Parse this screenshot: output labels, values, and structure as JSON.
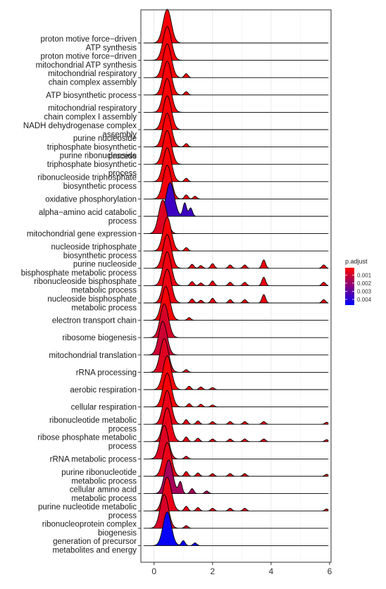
{
  "chart_data": {
    "type": "ridgeline",
    "xlim": [
      -0.45,
      6.05
    ],
    "x_ticks": [
      0,
      2,
      4,
      6
    ],
    "grid": true,
    "legend": {
      "title": "p.adjust",
      "placement": "right",
      "ticks": [
        0.001,
        0.002,
        0.003,
        0.004
      ],
      "tick_labels": [
        "0.001",
        "0.002",
        "0.003",
        "0.004"
      ],
      "colors": {
        "low": "#ff0000",
        "high": "#0000ff"
      },
      "range": [
        0.0001,
        0.0047
      ]
    },
    "rows": [
      {
        "label": [
          "proton motive force−driven",
          "ATP synthesis"
        ],
        "peak_x": 0.45,
        "p_adjust": 0.0002,
        "bumps": []
      },
      {
        "label": [
          "proton motive force−driven",
          "mitochondrial ATP synthesis"
        ],
        "peak_x": 0.45,
        "p_adjust": 0.0002,
        "bumps": []
      },
      {
        "label": [
          "mitochondrial respiratory",
          "chain complex assembly"
        ],
        "peak_x": 0.45,
        "p_adjust": 0.0002,
        "bumps": [
          [
            1.1,
            0.12
          ]
        ]
      },
      {
        "label": [
          "ATP biosynthetic process"
        ],
        "peak_x": 0.45,
        "p_adjust": 0.0002,
        "bumps": [
          [
            1.1,
            0.1
          ]
        ]
      },
      {
        "label": [
          "mitochondrial respiratory",
          "chain complex I assembly"
        ],
        "peak_x": 0.45,
        "p_adjust": 0.0002,
        "bumps": []
      },
      {
        "label": [
          "NADH dehydrogenase complex",
          "assembly"
        ],
        "peak_x": 0.45,
        "p_adjust": 0.0002,
        "bumps": []
      },
      {
        "label": [
          "purine nucleoside",
          "triphosphate biosynthetic",
          "process"
        ],
        "peak_x": 0.45,
        "p_adjust": 0.0002,
        "bumps": [
          [
            1.1,
            0.1
          ]
        ]
      },
      {
        "label": [
          "purine ribonucleoside",
          "triphosphate biosynthetic",
          "process"
        ],
        "peak_x": 0.45,
        "p_adjust": 0.0002,
        "bumps": []
      },
      {
        "label": [
          "ribonucleoside triphosphate",
          "biosynthetic process"
        ],
        "peak_x": 0.45,
        "p_adjust": 0.0002,
        "bumps": [
          [
            1.1,
            0.1
          ]
        ]
      },
      {
        "label": [
          "oxidative phosphorylation"
        ],
        "peak_x": 0.45,
        "p_adjust": 0.0003,
        "bumps": [
          [
            1.1,
            0.12
          ],
          [
            1.4,
            0.08
          ]
        ]
      },
      {
        "label": [
          "alpha−amino acid catabolic",
          "process"
        ],
        "peak_x": 0.55,
        "p_adjust": 0.0036,
        "bumps": [
          [
            1.05,
            0.4
          ],
          [
            1.25,
            0.25
          ]
        ]
      },
      {
        "label": [
          "mitochondrial gene expression"
        ],
        "peak_x": 0.3,
        "p_adjust": 0.0007,
        "bumps": []
      },
      {
        "label": [
          "nucleoside triphosphate",
          "biosynthetic process"
        ],
        "peak_x": 0.45,
        "p_adjust": 0.0002,
        "bumps": [
          [
            1.1,
            0.1
          ]
        ]
      },
      {
        "label": [
          "purine nucleoside",
          "bisphosphate metabolic process"
        ],
        "peak_x": 0.45,
        "p_adjust": 0.0004,
        "bumps": [
          [
            1.3,
            0.12
          ],
          [
            1.6,
            0.08
          ],
          [
            2.0,
            0.14
          ],
          [
            2.6,
            0.1
          ],
          [
            3.1,
            0.1
          ],
          [
            3.75,
            0.25
          ],
          [
            5.8,
            0.1
          ]
        ]
      },
      {
        "label": [
          "ribonucleoside bisphosphate",
          "metabolic process"
        ],
        "peak_x": 0.45,
        "p_adjust": 0.0004,
        "bumps": [
          [
            1.3,
            0.12
          ],
          [
            1.6,
            0.08
          ],
          [
            2.0,
            0.14
          ],
          [
            2.6,
            0.1
          ],
          [
            3.1,
            0.1
          ],
          [
            3.75,
            0.25
          ],
          [
            5.8,
            0.1
          ]
        ]
      },
      {
        "label": [
          "nucleoside bisphosphate",
          "metabolic process"
        ],
        "peak_x": 0.45,
        "p_adjust": 0.0004,
        "bumps": [
          [
            1.3,
            0.12
          ],
          [
            1.6,
            0.08
          ],
          [
            2.0,
            0.14
          ],
          [
            2.6,
            0.1
          ],
          [
            3.1,
            0.1
          ],
          [
            3.75,
            0.25
          ],
          [
            5.8,
            0.1
          ]
        ]
      },
      {
        "label": [
          "electron transport chain"
        ],
        "peak_x": 0.4,
        "p_adjust": 0.0002,
        "bumps": [
          [
            1.2,
            0.08
          ]
        ]
      },
      {
        "label": [
          "ribosome biogenesis"
        ],
        "peak_x": 0.35,
        "p_adjust": 0.0008,
        "bumps": []
      },
      {
        "label": [
          "mitochondrial translation"
        ],
        "peak_x": 0.3,
        "p_adjust": 0.001,
        "bumps": []
      },
      {
        "label": [
          "rRNA processing"
        ],
        "peak_x": 0.35,
        "p_adjust": 0.0007,
        "bumps": [
          [
            1.1,
            0.08
          ]
        ]
      },
      {
        "label": [
          "aerobic respiration"
        ],
        "peak_x": 0.45,
        "p_adjust": 0.0002,
        "bumps": [
          [
            1.2,
            0.1
          ],
          [
            1.6,
            0.08
          ],
          [
            2.0,
            0.06
          ]
        ]
      },
      {
        "label": [
          "cellular respiration"
        ],
        "peak_x": 0.45,
        "p_adjust": 0.0002,
        "bumps": [
          [
            1.2,
            0.1
          ],
          [
            1.6,
            0.08
          ],
          [
            2.0,
            0.06
          ]
        ]
      },
      {
        "label": [
          "ribonucleotide metabolic",
          "process"
        ],
        "peak_x": 0.45,
        "p_adjust": 0.0005,
        "bumps": [
          [
            1.1,
            0.14
          ],
          [
            1.5,
            0.1
          ],
          [
            2.0,
            0.08
          ],
          [
            2.6,
            0.08
          ],
          [
            3.1,
            0.08
          ],
          [
            3.75,
            0.08
          ],
          [
            5.9,
            0.06
          ]
        ]
      },
      {
        "label": [
          "ribose phosphate metabolic",
          "process"
        ],
        "peak_x": 0.45,
        "p_adjust": 0.0005,
        "bumps": [
          [
            1.1,
            0.14
          ],
          [
            1.5,
            0.1
          ],
          [
            2.0,
            0.08
          ],
          [
            2.6,
            0.08
          ],
          [
            3.1,
            0.08
          ],
          [
            3.75,
            0.08
          ],
          [
            5.9,
            0.06
          ]
        ]
      },
      {
        "label": [
          "rRNA metabolic process"
        ],
        "peak_x": 0.35,
        "p_adjust": 0.0007,
        "bumps": [
          [
            1.1,
            0.08
          ]
        ]
      },
      {
        "label": [
          "purine ribonucleotide",
          "metabolic process"
        ],
        "peak_x": 0.45,
        "p_adjust": 0.0005,
        "bumps": [
          [
            1.1,
            0.14
          ],
          [
            1.5,
            0.1
          ],
          [
            2.0,
            0.08
          ],
          [
            2.6,
            0.08
          ],
          [
            3.1,
            0.08
          ],
          [
            5.9,
            0.06
          ]
        ]
      },
      {
        "label": [
          "cellular amino acid",
          "metabolic process"
        ],
        "peak_x": 0.5,
        "p_adjust": 0.0017,
        "bumps": [
          [
            0.9,
            0.35
          ],
          [
            1.3,
            0.15
          ],
          [
            1.8,
            0.08
          ]
        ]
      },
      {
        "label": [
          "purine nucleotide metabolic",
          "process"
        ],
        "peak_x": 0.45,
        "p_adjust": 0.0005,
        "bumps": [
          [
            1.1,
            0.14
          ],
          [
            1.5,
            0.1
          ],
          [
            2.0,
            0.08
          ],
          [
            2.6,
            0.08
          ],
          [
            3.1,
            0.08
          ],
          [
            5.9,
            0.06
          ]
        ]
      },
      {
        "label": [
          "ribonucleoprotein complex",
          "biogenesis"
        ],
        "peak_x": 0.35,
        "p_adjust": 0.0008,
        "bumps": [
          [
            1.1,
            0.08
          ]
        ]
      },
      {
        "label": [
          "generation of precursor",
          "metabolites and energy"
        ],
        "peak_x": 0.45,
        "p_adjust": 0.0046,
        "bumps": [
          [
            1.0,
            0.15
          ],
          [
            1.4,
            0.08
          ]
        ]
      }
    ]
  }
}
